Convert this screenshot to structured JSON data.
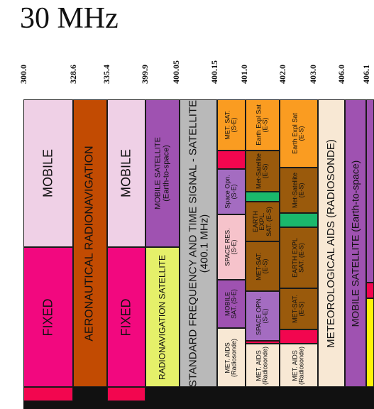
{
  "title": "30 MHz",
  "frequencies": [
    "300.0",
    "328.6",
    "335.4",
    "399.9",
    "400.05",
    "400.15",
    "401.0",
    "402.0",
    "403.0",
    "406.0",
    "406.1"
  ],
  "allocations": {
    "mobile_1": "MOBILE",
    "fixed_1": "FIXED",
    "aero_radionav": "AERONAUTICAL RADIONAVIGATION",
    "mobile_2": "MOBILE",
    "fixed_2": "FIXED",
    "mobile_sat": "MOBILE SATELLITE\n(Earth-to-space)",
    "radionav_sat": "RADIONAVIGATION SATELLITE",
    "std_freq": "STANDARD FREQUENCY AND TIME SIGNAL - SATELLITE\n(400.1 MHz)",
    "met_sat_1": "MET. SAT.\n(S-E)",
    "space_opn_1": "Space Opn.\n(S-E)",
    "space_res": "SPACE RES.\n(S-E)",
    "mobile_sat_se": "MOBILE\nSAT. (S-E)",
    "met_aids_1": "MET. AIDS\n(Radiosonde)",
    "earth_expl_1": "Earth Expl Sat\n(E-S)",
    "met_satellite_1": "Met-Satellite\n(E-S)",
    "earth_expl_sat_2": "EARTH\nEXPL.\nSAT. (E-S)",
    "met_sat_es": "MET-SAT.\n(E-S)",
    "space_opn_2": "SPACE OPN.\n(S-E)",
    "met_aids_2": "MET. AIDS\n(Radiosonde)",
    "earth_expl_3": "Earth Expl Sat\n(E-S)",
    "met_satellite_2": "Met-Satellite\n(E-S)",
    "earth_expl_sat_4": "EARTH EXPL\nSAT. (E-S)",
    "met_sat_3": "MET-SAT.\n(E-S)",
    "met_aids_3": "MET. AIDS\n(Radiosonde)",
    "met_aids_radiosonde": "METEOROLOGICAL AIDS (RADIOSONDE)",
    "mobile_sat_2": "MOBILE SATELLITE (Earth-to-space)",
    "radio_partial": "RADIO"
  },
  "colors": {
    "mobile": "#efd0e6",
    "fixed": "#f2087f",
    "aeronautical_radionavigation": "#c24b02",
    "mobile_satellite": "#9f52b1",
    "radionavigation_satellite": "#e5f06a",
    "standard_frequency": "#b9b9b9",
    "met_satellite": "#fa9c21",
    "space_operation": "#a46cc1",
    "space_research": "#f6c3cb",
    "red": "#f2064f",
    "met_aids": "#f8e8d4",
    "earth_exploration": "#9a5a0c",
    "green": "#1ab86c",
    "black": "#111111",
    "yellow": "#fef20a"
  }
}
